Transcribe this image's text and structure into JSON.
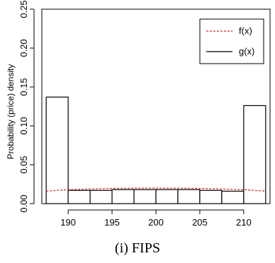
{
  "chart_data": {
    "type": "bar",
    "ylabel": "Probability (price) density",
    "xlim": [
      187,
      213
    ],
    "ylim": [
      0,
      0.25
    ],
    "xticks": [
      "190",
      "195",
      "200",
      "205",
      "210"
    ],
    "yticks": [
      "0.00",
      "0.05",
      "0.10",
      "0.15",
      "0.20",
      "0.25"
    ],
    "bins": [
      {
        "x0": 187.5,
        "x1": 190,
        "value": 0.137
      },
      {
        "x0": 190,
        "x1": 192.5,
        "value": 0.017
      },
      {
        "x0": 192.5,
        "x1": 195,
        "value": 0.017
      },
      {
        "x0": 195,
        "x1": 197.5,
        "value": 0.018
      },
      {
        "x0": 197.5,
        "x1": 200,
        "value": 0.018
      },
      {
        "x0": 200,
        "x1": 202.5,
        "value": 0.018
      },
      {
        "x0": 202.5,
        "x1": 205,
        "value": 0.018
      },
      {
        "x0": 205,
        "x1": 207.5,
        "value": 0.017
      },
      {
        "x0": 207.5,
        "x1": 210,
        "value": 0.016
      },
      {
        "x0": 210,
        "x1": 212.5,
        "value": 0.126
      }
    ],
    "series": [
      {
        "name": "f(x)",
        "style": "dashed",
        "color": "#d62728",
        "x": [
          187.5,
          190,
          195,
          200,
          205,
          210,
          212.5
        ],
        "y": [
          0.016,
          0.018,
          0.0195,
          0.02,
          0.0195,
          0.018,
          0.016
        ]
      },
      {
        "name": "g(x)",
        "style": "solid",
        "color": "#000000"
      }
    ],
    "legend_position": "top-right",
    "grid": false
  },
  "caption": "(i) FIPS"
}
